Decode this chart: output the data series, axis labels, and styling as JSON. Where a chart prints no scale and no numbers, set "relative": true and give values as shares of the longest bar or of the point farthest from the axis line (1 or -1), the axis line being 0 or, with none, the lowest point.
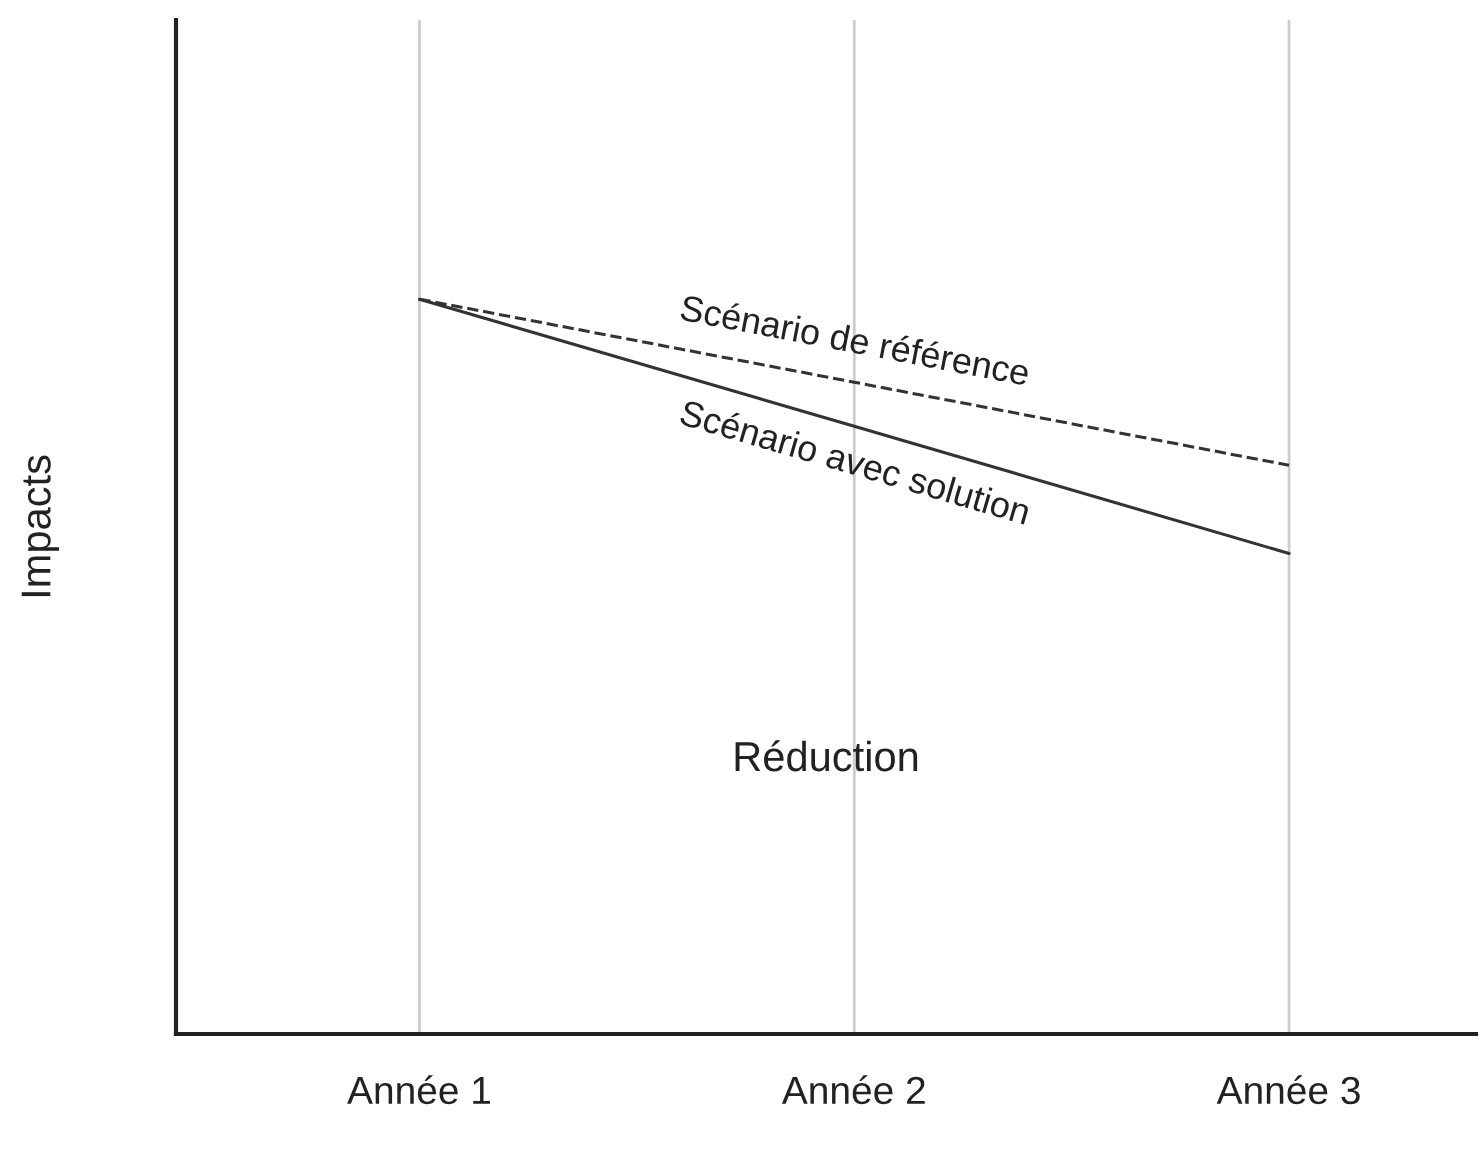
{
  "chart_data": {
    "type": "line",
    "ylabel": "Impacts",
    "categories": [
      "Année 1",
      "Année 2",
      "Année 3"
    ],
    "relative": true,
    "grid": "x",
    "marker": "none",
    "series": [
      {
        "name": "Scénario de référence",
        "color": "#333333",
        "line_style": "dashed",
        "values": [
          1,
          0.887,
          0.774
        ]
      },
      {
        "name": "Scénario avec solution",
        "color": "#333333",
        "line_style": "solid",
        "values": [
          1,
          0.827,
          0.654
        ]
      }
    ],
    "annotations": [
      "Réduction"
    ]
  }
}
